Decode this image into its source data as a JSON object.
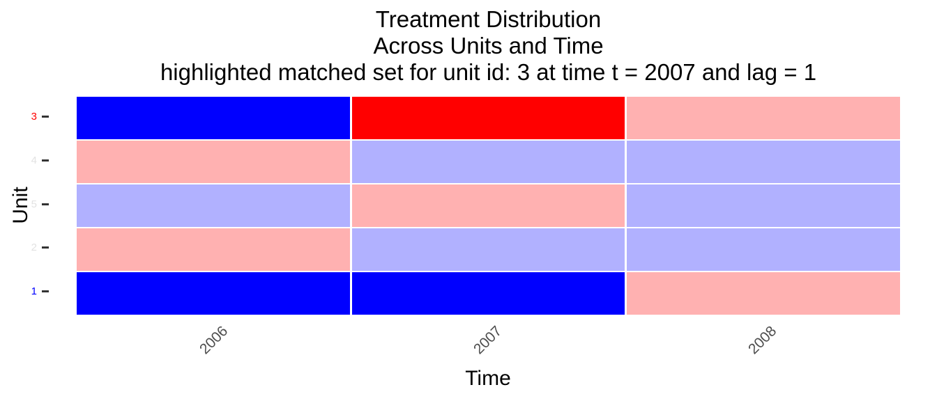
{
  "chart_data": {
    "type": "heatmap",
    "title_lines": [
      "Treatment Distribution",
      "Across Units and Time",
      "highlighted matched set for unit id: 3 at time t = 2007 and lag = 1"
    ],
    "xlabel": "Time",
    "ylabel": "Unit",
    "x_categories": [
      "2006",
      "2007",
      "2008"
    ],
    "y_categories_top_to_bottom": [
      "3",
      "4",
      "5",
      "2",
      "1"
    ],
    "legend_position": "none",
    "grid": false,
    "palette": {
      "blue": "#0000FF",
      "red": "#FF0000",
      "pink": "#FFB1B1",
      "lavender": "#B1B1FF"
    },
    "cells_top_to_bottom": [
      [
        "blue",
        "red",
        "pink"
      ],
      [
        "pink",
        "lavender",
        "lavender"
      ],
      [
        "lavender",
        "pink",
        "lavender"
      ],
      [
        "pink",
        "lavender",
        "lavender"
      ],
      [
        "blue",
        "blue",
        "pink"
      ]
    ],
    "y_tick_label_colors": [
      "#FF0000",
      "#E2E2E2",
      "#E2E2E2",
      "#E2E2E2",
      "#0000FF"
    ],
    "x_tick_label_color": "#4D4D4D",
    "axis_tick_color": "#333333"
  }
}
